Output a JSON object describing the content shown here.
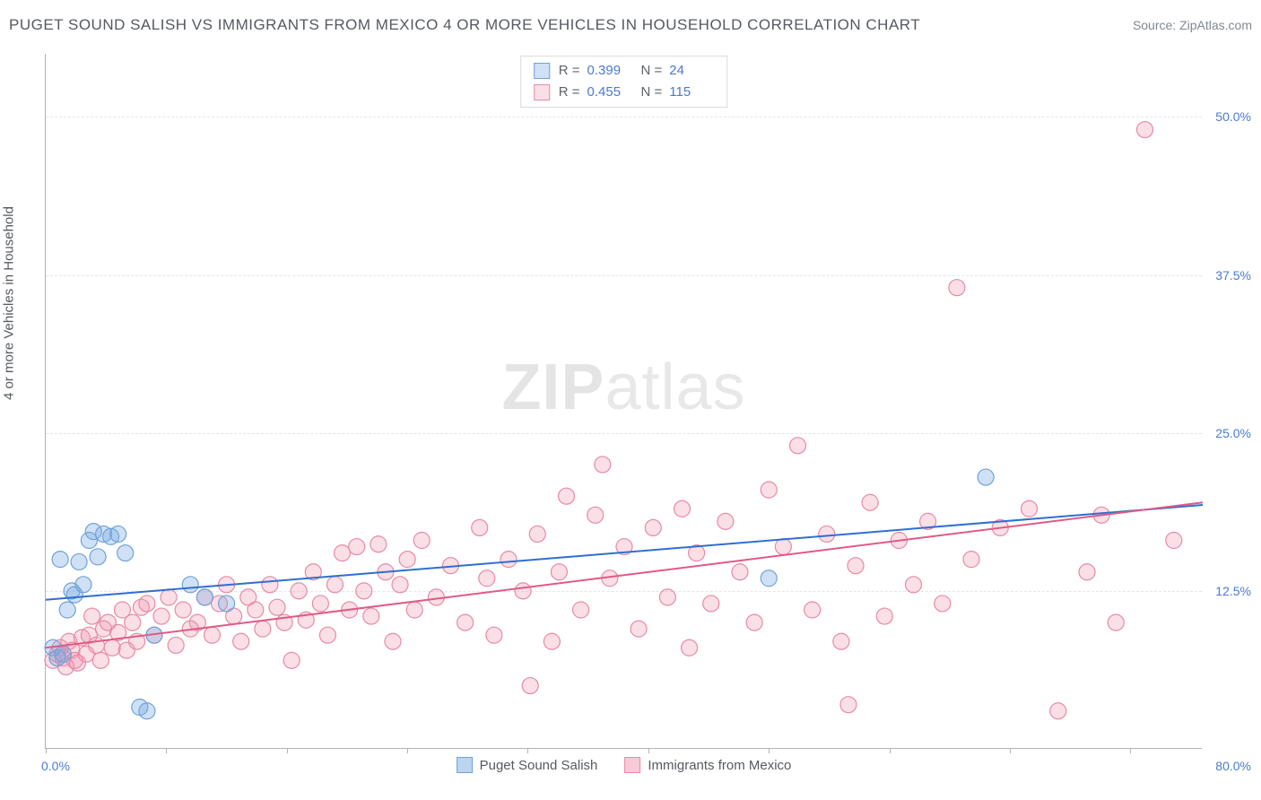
{
  "title": "PUGET SOUND SALISH VS IMMIGRANTS FROM MEXICO 4 OR MORE VEHICLES IN HOUSEHOLD CORRELATION CHART",
  "source": "Source: ZipAtlas.com",
  "ylabel": "4 or more Vehicles in Household",
  "watermark_a": "ZIP",
  "watermark_b": "atlas",
  "chart": {
    "type": "scatter",
    "xlim": [
      0,
      80
    ],
    "ylim": [
      0,
      55
    ],
    "xaxis_min_label": "0.0%",
    "xaxis_max_label": "80.0%",
    "xticks": [
      0,
      8.333,
      16.667,
      25,
      33.333,
      41.667,
      50,
      58.333,
      66.667,
      75
    ],
    "yticks": [
      {
        "v": 12.5,
        "label": "12.5%"
      },
      {
        "v": 25.0,
        "label": "25.0%"
      },
      {
        "v": 37.5,
        "label": "37.5%"
      },
      {
        "v": 50.0,
        "label": "50.0%"
      }
    ],
    "grid_color": "#e4e6e8",
    "axis_color": "#b0b4b8",
    "label_color": "#4a7bd0",
    "text_color": "#555a60",
    "background": "#ffffff",
    "marker_radius": 9,
    "marker_stroke_width": 1.2,
    "line_width": 2
  },
  "series": [
    {
      "name": "Puget Sound Salish",
      "color_fill": "rgba(120,170,225,0.35)",
      "color_stroke": "#6fa3d9",
      "line_color": "#2f6fd0",
      "R": "0.399",
      "N": "24",
      "trend": {
        "x1": 0,
        "y1": 11.8,
        "x2": 80,
        "y2": 19.3
      },
      "points": [
        [
          0.5,
          8.0
        ],
        [
          0.8,
          7.2
        ],
        [
          1.0,
          15.0
        ],
        [
          1.2,
          7.5
        ],
        [
          1.5,
          11.0
        ],
        [
          1.8,
          12.5
        ],
        [
          2.0,
          12.2
        ],
        [
          2.3,
          14.8
        ],
        [
          2.6,
          13.0
        ],
        [
          3.0,
          16.5
        ],
        [
          3.3,
          17.2
        ],
        [
          3.6,
          15.2
        ],
        [
          4.0,
          17.0
        ],
        [
          4.5,
          16.8
        ],
        [
          5.0,
          17.0
        ],
        [
          5.5,
          15.5
        ],
        [
          6.5,
          3.3
        ],
        [
          7.0,
          3.0
        ],
        [
          7.5,
          9.0
        ],
        [
          10.0,
          13.0
        ],
        [
          11.0,
          12.0
        ],
        [
          12.5,
          11.5
        ],
        [
          50.0,
          13.5
        ],
        [
          65.0,
          21.5
        ]
      ]
    },
    {
      "name": "Immigrants from Mexico",
      "color_fill": "rgba(240,150,175,0.30)",
      "color_stroke": "#e88aa5",
      "line_color": "#e05a85",
      "R": "0.455",
      "N": "115",
      "trend": {
        "x1": 0,
        "y1": 8.0,
        "x2": 80,
        "y2": 19.5
      },
      "points": [
        [
          0.5,
          7.0
        ],
        [
          0.8,
          7.5
        ],
        [
          1.0,
          8.0
        ],
        [
          1.2,
          7.2
        ],
        [
          1.4,
          6.5
        ],
        [
          1.6,
          8.5
        ],
        [
          1.8,
          7.8
        ],
        [
          2.0,
          7.0
        ],
        [
          2.2,
          6.8
        ],
        [
          2.5,
          8.8
        ],
        [
          2.8,
          7.5
        ],
        [
          3.0,
          9.0
        ],
        [
          3.2,
          10.5
        ],
        [
          3.5,
          8.2
        ],
        [
          3.8,
          7.0
        ],
        [
          4.0,
          9.5
        ],
        [
          4.3,
          10.0
        ],
        [
          4.6,
          8.0
        ],
        [
          5.0,
          9.2
        ],
        [
          5.3,
          11.0
        ],
        [
          5.6,
          7.8
        ],
        [
          6.0,
          10.0
        ],
        [
          6.3,
          8.5
        ],
        [
          6.6,
          11.2
        ],
        [
          7.0,
          11.5
        ],
        [
          7.5,
          9.0
        ],
        [
          8.0,
          10.5
        ],
        [
          8.5,
          12.0
        ],
        [
          9.0,
          8.2
        ],
        [
          9.5,
          11.0
        ],
        [
          10.0,
          9.5
        ],
        [
          10.5,
          10.0
        ],
        [
          11.0,
          12.0
        ],
        [
          11.5,
          9.0
        ],
        [
          12.0,
          11.5
        ],
        [
          12.5,
          13.0
        ],
        [
          13.0,
          10.5
        ],
        [
          13.5,
          8.5
        ],
        [
          14.0,
          12.0
        ],
        [
          14.5,
          11.0
        ],
        [
          15.0,
          9.5
        ],
        [
          15.5,
          13.0
        ],
        [
          16.0,
          11.2
        ],
        [
          16.5,
          10.0
        ],
        [
          17.0,
          7.0
        ],
        [
          17.5,
          12.5
        ],
        [
          18.0,
          10.2
        ],
        [
          18.5,
          14.0
        ],
        [
          19.0,
          11.5
        ],
        [
          19.5,
          9.0
        ],
        [
          20.0,
          13.0
        ],
        [
          20.5,
          15.5
        ],
        [
          21.0,
          11.0
        ],
        [
          21.5,
          16.0
        ],
        [
          22.0,
          12.5
        ],
        [
          22.5,
          10.5
        ],
        [
          23.0,
          16.2
        ],
        [
          23.5,
          14.0
        ],
        [
          24.0,
          8.5
        ],
        [
          24.5,
          13.0
        ],
        [
          25.0,
          15.0
        ],
        [
          25.5,
          11.0
        ],
        [
          26.0,
          16.5
        ],
        [
          27.0,
          12.0
        ],
        [
          28.0,
          14.5
        ],
        [
          29.0,
          10.0
        ],
        [
          30.0,
          17.5
        ],
        [
          30.5,
          13.5
        ],
        [
          31.0,
          9.0
        ],
        [
          32.0,
          15.0
        ],
        [
          33.0,
          12.5
        ],
        [
          33.5,
          5.0
        ],
        [
          34.0,
          17.0
        ],
        [
          35.0,
          8.5
        ],
        [
          35.5,
          14.0
        ],
        [
          36.0,
          20.0
        ],
        [
          37.0,
          11.0
        ],
        [
          38.0,
          18.5
        ],
        [
          38.5,
          22.5
        ],
        [
          39.0,
          13.5
        ],
        [
          40.0,
          16.0
        ],
        [
          41.0,
          9.5
        ],
        [
          42.0,
          17.5
        ],
        [
          43.0,
          12.0
        ],
        [
          44.0,
          19.0
        ],
        [
          44.5,
          8.0
        ],
        [
          45.0,
          15.5
        ],
        [
          46.0,
          11.5
        ],
        [
          47.0,
          18.0
        ],
        [
          48.0,
          14.0
        ],
        [
          49.0,
          10.0
        ],
        [
          50.0,
          20.5
        ],
        [
          51.0,
          16.0
        ],
        [
          52.0,
          24.0
        ],
        [
          53.0,
          11.0
        ],
        [
          54.0,
          17.0
        ],
        [
          55.0,
          8.5
        ],
        [
          55.5,
          3.5
        ],
        [
          56.0,
          14.5
        ],
        [
          57.0,
          19.5
        ],
        [
          58.0,
          10.5
        ],
        [
          59.0,
          16.5
        ],
        [
          60.0,
          13.0
        ],
        [
          61.0,
          18.0
        ],
        [
          62.0,
          11.5
        ],
        [
          63.0,
          36.5
        ],
        [
          64.0,
          15.0
        ],
        [
          66.0,
          17.5
        ],
        [
          68.0,
          19.0
        ],
        [
          70.0,
          3.0
        ],
        [
          72.0,
          14.0
        ],
        [
          73.0,
          18.5
        ],
        [
          74.0,
          10.0
        ],
        [
          76.0,
          49.0
        ],
        [
          78.0,
          16.5
        ]
      ]
    }
  ],
  "legend_bottom": [
    {
      "label": "Puget Sound Salish",
      "fill": "rgba(120,170,225,0.5)",
      "stroke": "#6fa3d9"
    },
    {
      "label": "Immigrants from Mexico",
      "fill": "rgba(240,150,175,0.5)",
      "stroke": "#e88aa5"
    }
  ]
}
